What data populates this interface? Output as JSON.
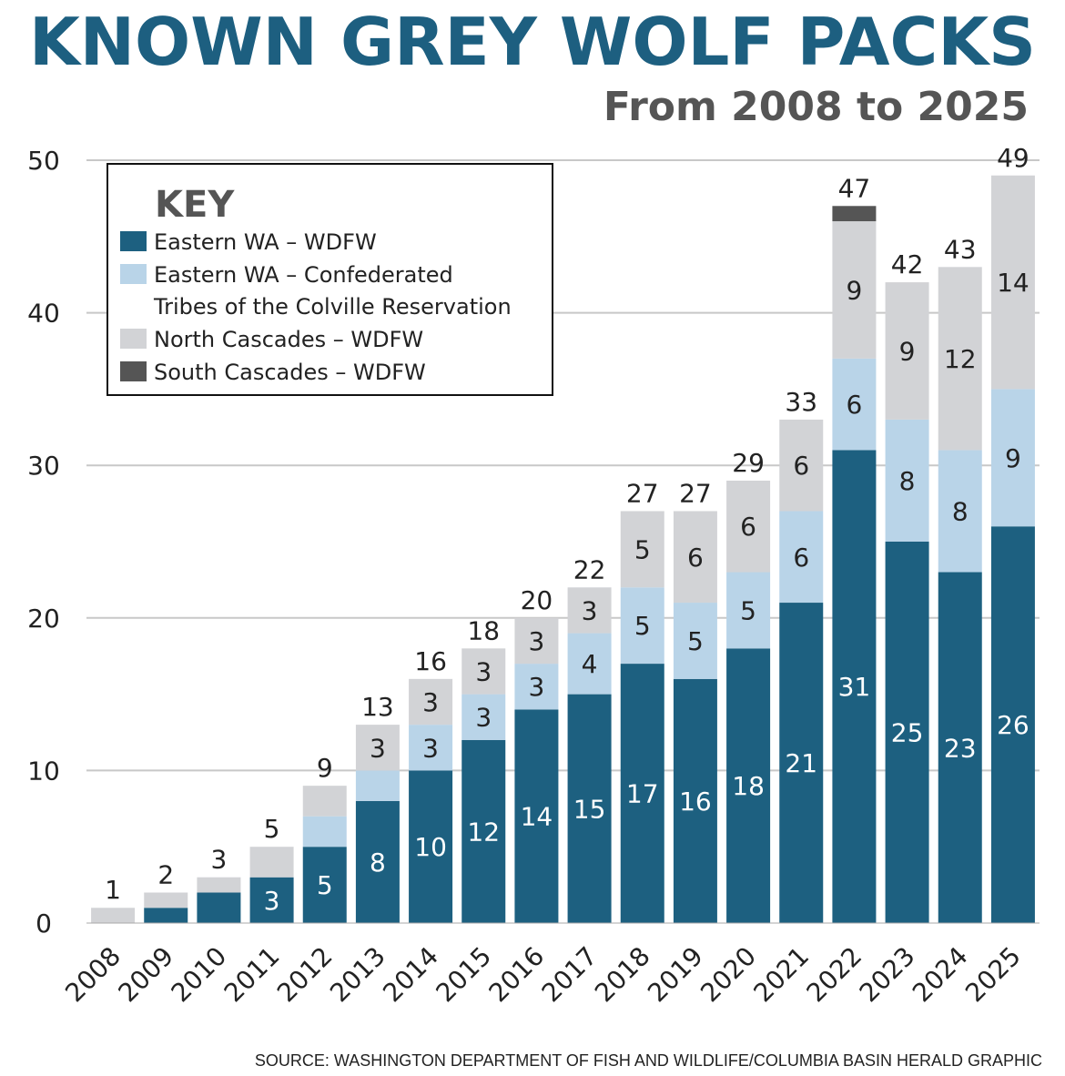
{
  "title": "KNOWN GREY WOLF PACKS",
  "subtitle": "From 2008 to 2025",
  "source": "SOURCE: WASHINGTON DEPARTMENT OF FISH AND WILDLIFE/COLUMBIA BASIN HERALD GRAPHIC",
  "colors": {
    "eastern_wdfw": "#1d6080",
    "confederated": "#b9d4e8",
    "north_cascades": "#d2d3d6",
    "south_cascades": "#555555",
    "grid": "#c8c8c8"
  },
  "chart_data": {
    "type": "bar",
    "stacked": true,
    "title": "KNOWN GREY WOLF PACKS",
    "subtitle": "From 2008 to 2025",
    "xlabel": "",
    "ylabel": "",
    "ylim": [
      0,
      50
    ],
    "yticks": [
      0,
      10,
      20,
      30,
      40,
      50
    ],
    "grid": true,
    "legend_title": "KEY",
    "legend_position": "top-left",
    "categories": [
      "2008",
      "2009",
      "2010",
      "2011",
      "2012",
      "2013",
      "2014",
      "2015",
      "2016",
      "2017",
      "2018",
      "2019",
      "2020",
      "2021",
      "2022",
      "2023",
      "2024",
      "2025"
    ],
    "series": [
      {
        "name": "Eastern WA – WDFW",
        "values": [
          0,
          1,
          2,
          3,
          5,
          8,
          10,
          12,
          14,
          15,
          17,
          16,
          18,
          21,
          31,
          25,
          23,
          26
        ]
      },
      {
        "name": "Eastern WA – Confederated Tribes of the Colville Reservation",
        "values": [
          0,
          0,
          0,
          0,
          2,
          2,
          3,
          3,
          3,
          4,
          5,
          5,
          5,
          6,
          6,
          8,
          8,
          9
        ]
      },
      {
        "name": "North Cascades – WDFW",
        "values": [
          1,
          1,
          1,
          2,
          2,
          3,
          3,
          3,
          3,
          3,
          5,
          6,
          6,
          6,
          9,
          9,
          12,
          14
        ]
      },
      {
        "name": "South Cascades – WDFW",
        "values": [
          0,
          0,
          0,
          0,
          0,
          0,
          0,
          0,
          0,
          0,
          0,
          0,
          0,
          0,
          1,
          0,
          0,
          0
        ]
      }
    ],
    "totals": [
      1,
      2,
      3,
      5,
      9,
      13,
      16,
      18,
      20,
      22,
      27,
      27,
      29,
      33,
      47,
      42,
      43,
      49
    ],
    "segment_labels": [
      [
        null,
        null,
        null,
        "3",
        "5",
        "8",
        "10",
        "12",
        "14",
        "15",
        "17",
        "16",
        "18",
        "21",
        "31",
        "25",
        "23",
        "26"
      ],
      [
        null,
        null,
        null,
        null,
        null,
        null,
        "3",
        "3",
        "3",
        "4",
        "5",
        "5",
        "5",
        "6",
        "6",
        "8",
        "8",
        "9"
      ],
      [
        null,
        null,
        null,
        null,
        null,
        "3",
        "3",
        "3",
        "3",
        "3",
        "5",
        "6",
        "6",
        "6",
        "9",
        "9",
        "12",
        "14"
      ],
      [
        null,
        null,
        null,
        null,
        null,
        null,
        null,
        null,
        null,
        null,
        null,
        null,
        null,
        null,
        null,
        null,
        null,
        null
      ]
    ],
    "legend_lines": [
      [
        "Eastern WA – WDFW"
      ],
      [
        "Eastern WA – Confederated",
        "Tribes of the Colville Reservation"
      ],
      [
        "North Cascades – WDFW"
      ],
      [
        "South Cascades – WDFW"
      ]
    ]
  }
}
